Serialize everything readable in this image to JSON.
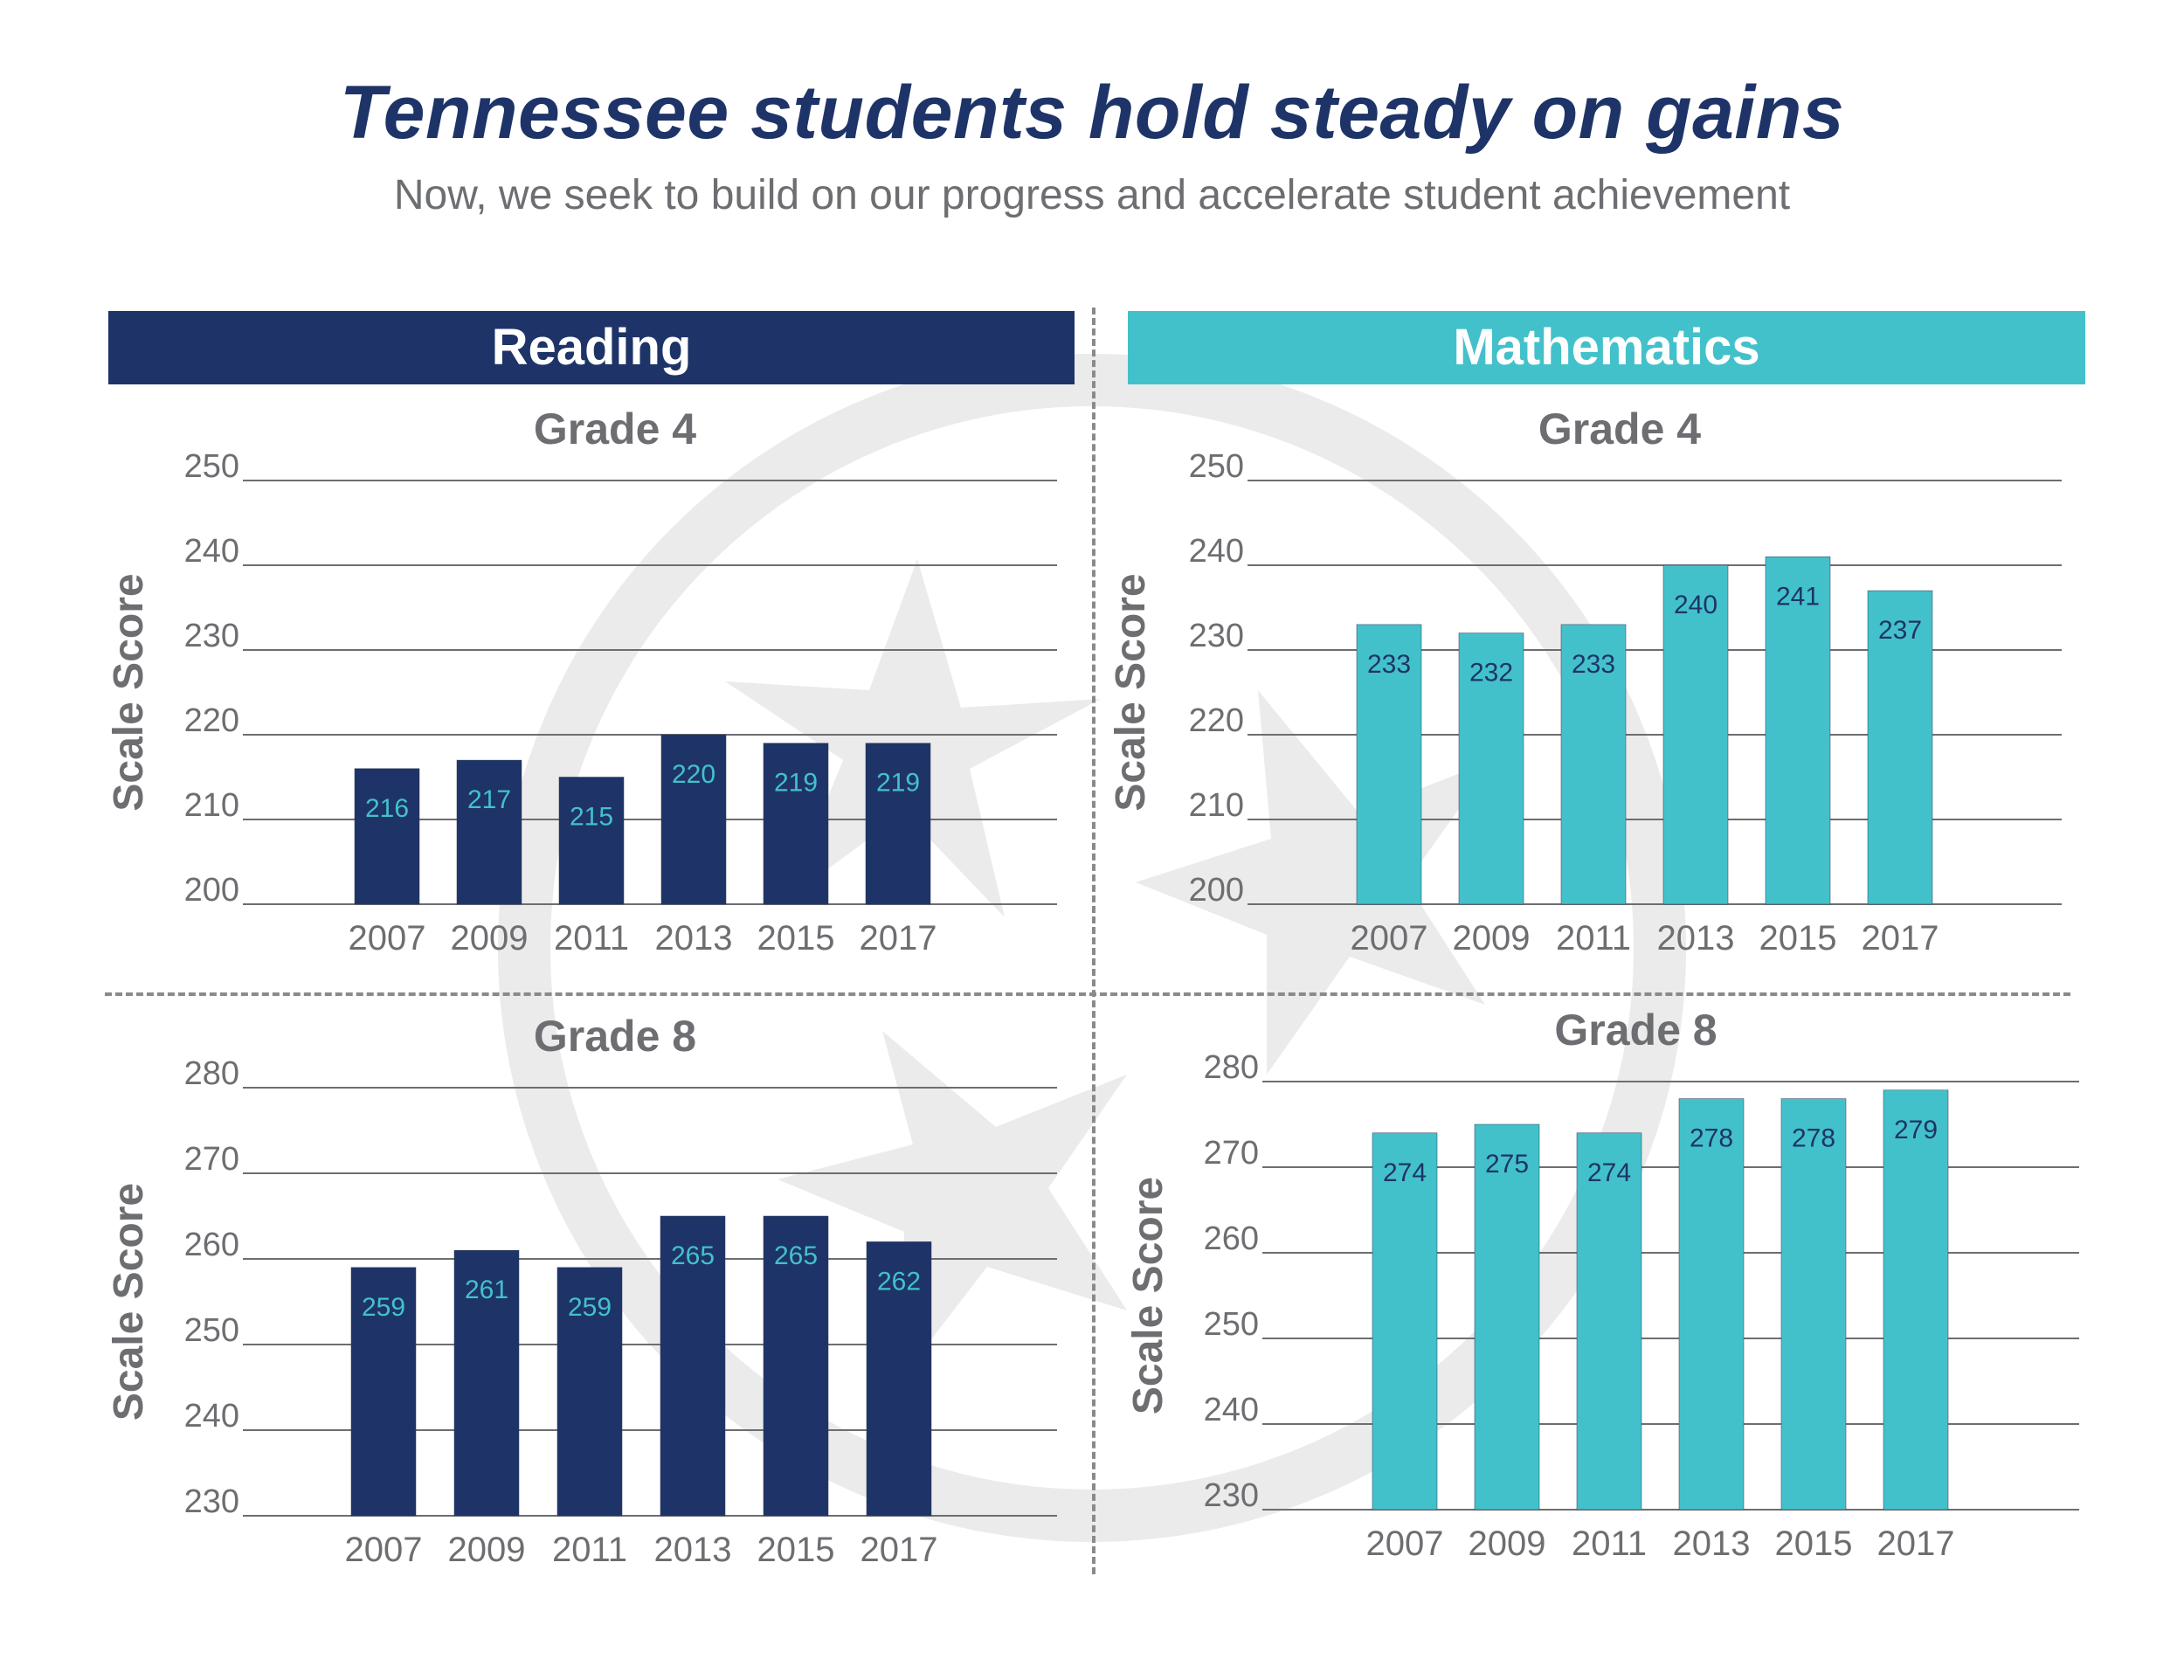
{
  "title": "Tennessee students hold steady on gains",
  "subtitle": "Now, we seek to build on our progress and accelerate student achievement",
  "panels": {
    "reading": "Reading",
    "math": "Mathematics"
  },
  "colors": {
    "navy": "#1e3468",
    "teal": "#43c1ca",
    "text_gray": "#6d6e71",
    "watermark": "#ebebeb"
  },
  "chart_data": [
    {
      "id": "reading-grade4",
      "type": "bar",
      "title": "Grade 4",
      "ylabel": "Scale Score",
      "categories": [
        "2007",
        "2009",
        "2011",
        "2013",
        "2015",
        "2017"
      ],
      "values": [
        216,
        217,
        215,
        220,
        219,
        219
      ],
      "ylim": [
        200,
        250
      ],
      "yticks": [
        200,
        210,
        220,
        230,
        240,
        250
      ],
      "bar_color": "#1e3468",
      "label_color": "#43c1ca",
      "grid": true
    },
    {
      "id": "math-grade4",
      "type": "bar",
      "title": "Grade 4",
      "ylabel": "Scale Score",
      "categories": [
        "2007",
        "2009",
        "2011",
        "2013",
        "2015",
        "2017"
      ],
      "values": [
        233,
        232,
        233,
        240,
        241,
        237
      ],
      "ylim": [
        200,
        250
      ],
      "yticks": [
        200,
        210,
        220,
        230,
        240,
        250
      ],
      "bar_color": "#43c1ca",
      "label_color": "#1e3468",
      "grid": true
    },
    {
      "id": "reading-grade8",
      "type": "bar",
      "title": "Grade 8",
      "ylabel": "Scale Score",
      "categories": [
        "2007",
        "2009",
        "2011",
        "2013",
        "2015",
        "2017"
      ],
      "values": [
        259,
        261,
        259,
        265,
        265,
        262
      ],
      "ylim": [
        230,
        280
      ],
      "yticks": [
        230,
        240,
        250,
        260,
        270,
        280
      ],
      "bar_color": "#1e3468",
      "label_color": "#43c1ca",
      "grid": true
    },
    {
      "id": "math-grade8",
      "type": "bar",
      "title": "Grade 8",
      "ylabel": "Scale Score",
      "categories": [
        "2007",
        "2009",
        "2011",
        "2013",
        "2015",
        "2017"
      ],
      "values": [
        274,
        275,
        274,
        278,
        278,
        279
      ],
      "ylim": [
        230,
        280
      ],
      "yticks": [
        230,
        240,
        250,
        260,
        270,
        280
      ],
      "bar_color": "#43c1ca",
      "label_color": "#1e3468",
      "grid": true
    }
  ]
}
